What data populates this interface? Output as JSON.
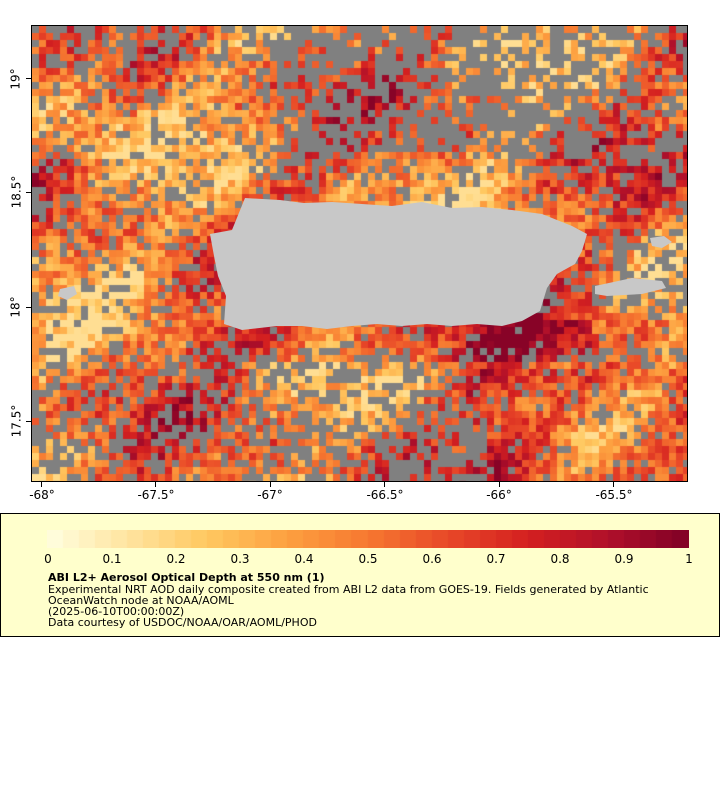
{
  "map": {
    "lat_labels": [
      "19°",
      "18.5°",
      "18°",
      "17.5°"
    ],
    "lon_labels": [
      "-68°",
      "-67.5°",
      "-67°",
      "-66.5°",
      "-66°",
      "-65.5°"
    ],
    "extent": {
      "lon_min": -68.05,
      "lon_max": -65.18,
      "lat_min": 17.27,
      "lat_max": 19.25
    },
    "land_color": "#c8c8c8",
    "nodata_color": "#808080"
  },
  "legend": {
    "tick_labels": [
      "0",
      "0.1",
      "0.2",
      "0.3",
      "0.4",
      "0.5",
      "0.6",
      "0.7",
      "0.8",
      "0.9",
      "1"
    ],
    "title": "ABI L2+ Aerosol Optical Depth at 550 nm (1)",
    "description_lines": [
      "Experimental NRT AOD daily composite created from ABI L2 data from GOES-19. Fields generated by Atlantic",
      "OceanWatch node at NOAA/AOML",
      "(2025-06-10T00:00:00Z)",
      "Data courtesy of USDOC/NOAA/OAR/AOML/PHOD"
    ],
    "range": [
      0,
      1
    ],
    "colors": [
      "#ffffe0",
      "#ffe4a0",
      "#ffc860",
      "#fda040",
      "#f67830",
      "#e84828",
      "#d42020",
      "#b0102a",
      "#800026"
    ]
  }
}
